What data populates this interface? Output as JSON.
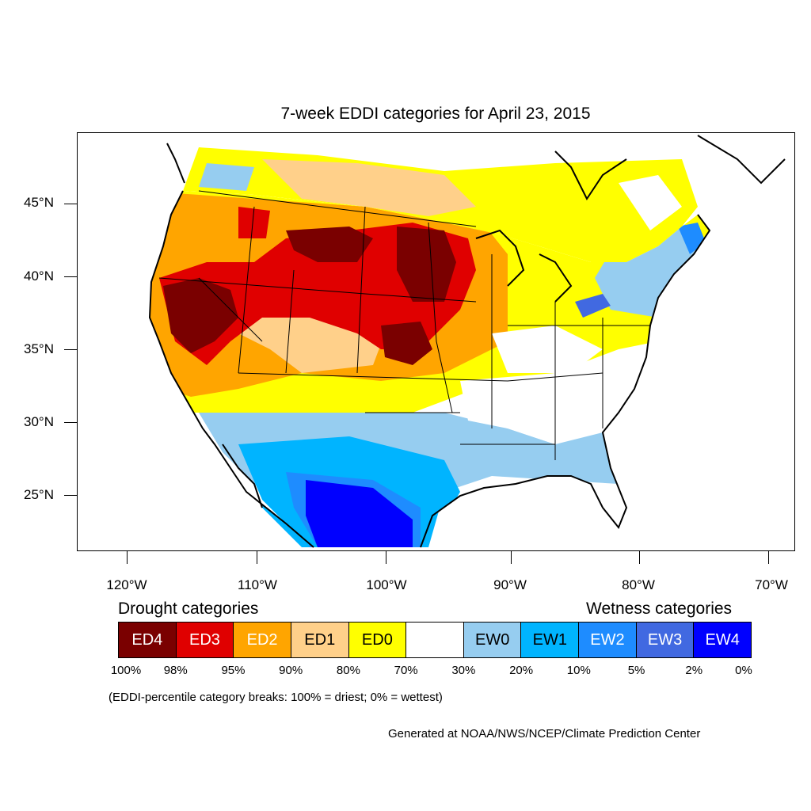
{
  "title": "7-week EDDI categories for April 23, 2015",
  "lat_labels": [
    "45°N",
    "40°N",
    "35°N",
    "30°N",
    "25°N"
  ],
  "lon_labels": [
    "120°W",
    "110°W",
    "100°W",
    "90°W",
    "80°W",
    "70°W"
  ],
  "legend": {
    "drought_title": "Drought categories",
    "wetness_title": "Wetness categories",
    "categories": [
      {
        "label": "ED4",
        "color": "#7a0000",
        "text_color": "#ffffff"
      },
      {
        "label": "ED3",
        "color": "#e00000",
        "text_color": "#ffffff"
      },
      {
        "label": "ED2",
        "color": "#ffa500",
        "text_color": "#ffffff"
      },
      {
        "label": "ED1",
        "color": "#ffd08a",
        "text_color": "#000000"
      },
      {
        "label": "ED0",
        "color": "#ffff00",
        "text_color": "#000000"
      },
      {
        "label": "",
        "color": "#ffffff",
        "text_color": "#000000"
      },
      {
        "label": "EW0",
        "color": "#96cdf0",
        "text_color": "#000000"
      },
      {
        "label": "EW1",
        "color": "#00b4ff",
        "text_color": "#000000"
      },
      {
        "label": "EW2",
        "color": "#1e8cff",
        "text_color": "#ffffff"
      },
      {
        "label": "EW3",
        "color": "#4169e1",
        "text_color": "#ffffff"
      },
      {
        "label": "EW4",
        "color": "#0000ff",
        "text_color": "#ffffff"
      }
    ],
    "breaks": [
      "100%",
      "98%",
      "95%",
      "90%",
      "80%",
      "70%",
      "30%",
      "20%",
      "10%",
      "5%",
      "2%",
      "0%"
    ]
  },
  "note": "(EDDI-percentile category breaks: 100% = driest; 0% = wettest)",
  "credit": "Generated at NOAA/NWS/NCEP/Climate Prediction Center"
}
